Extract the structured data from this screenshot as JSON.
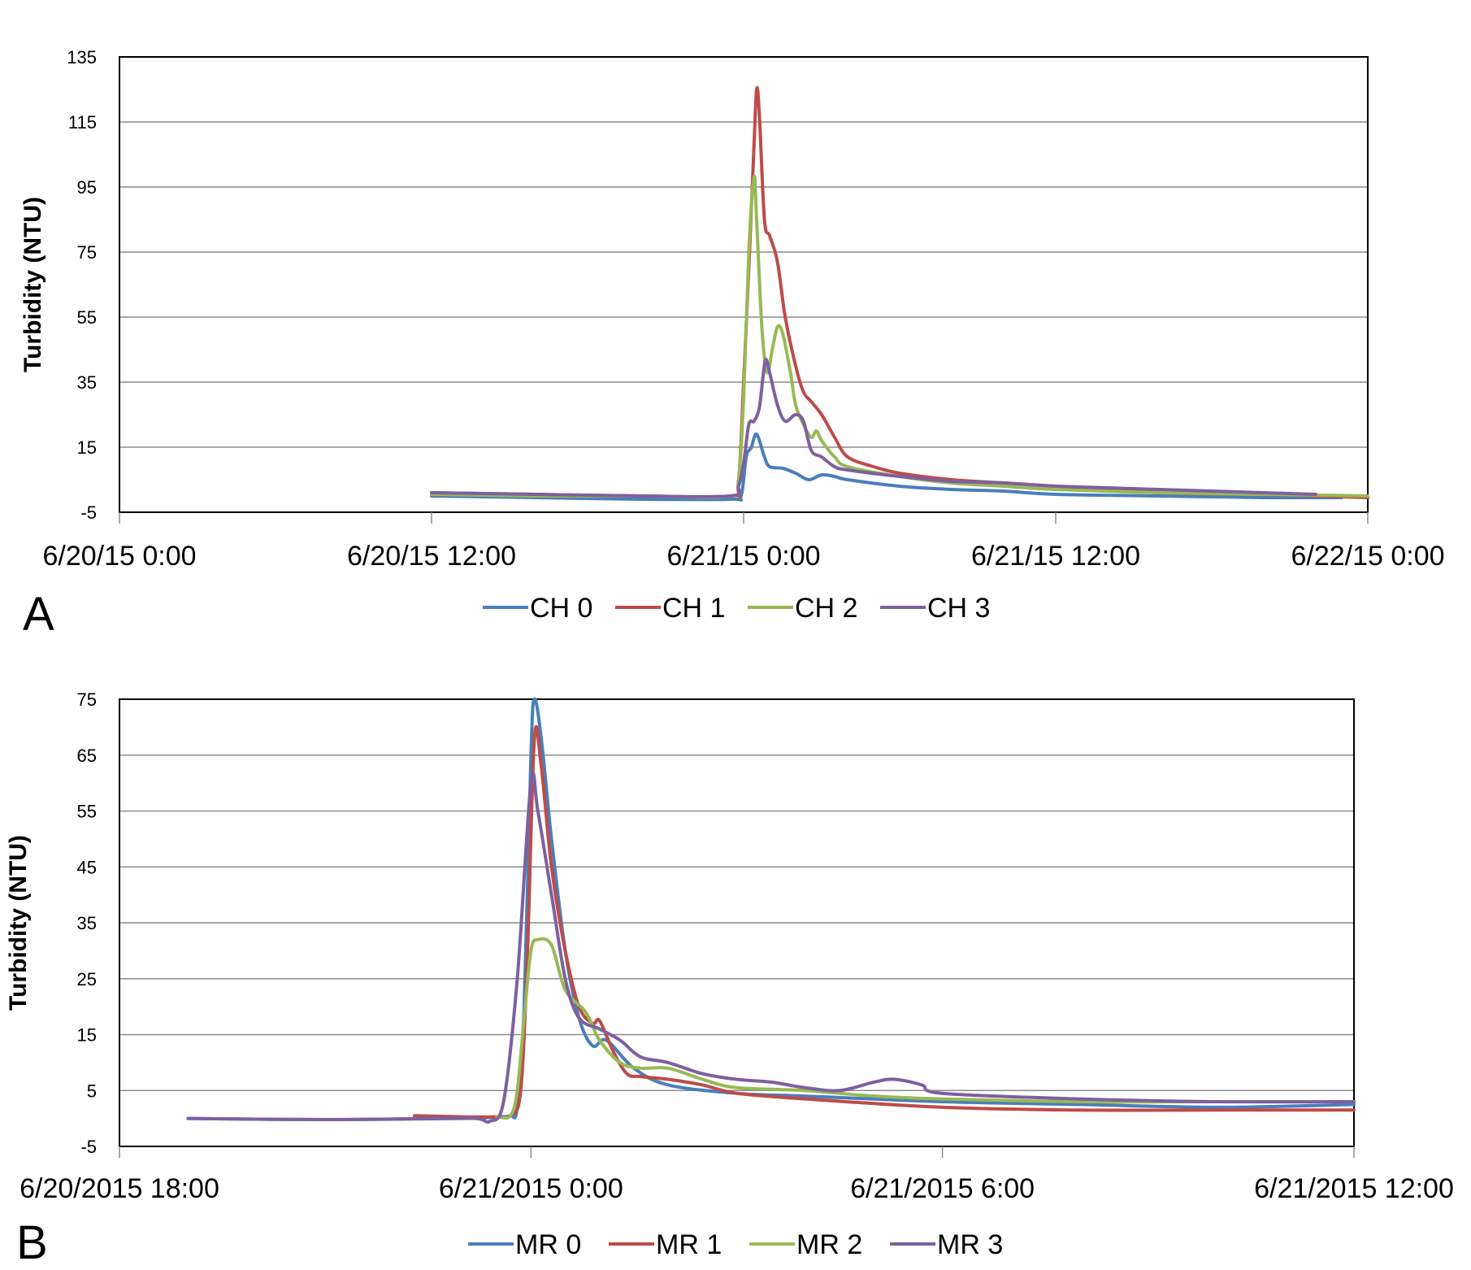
{
  "chart_data": [
    {
      "panel_label": "A",
      "type": "line",
      "ylabel": "Turbidity (NTU)",
      "ylim": [
        -5,
        135
      ],
      "yticks": [
        -5,
        15,
        35,
        55,
        75,
        95,
        115,
        135
      ],
      "x_unit": "hours since 6/20/15 0:00",
      "xlim": [
        0,
        48
      ],
      "xtick_labels": [
        "6/20/15 0:00",
        "6/20/15 12:00",
        "6/21/15 0:00",
        "6/21/15 12:00",
        "6/22/15 0:00"
      ],
      "grid": true,
      "legend_position": "bottom",
      "series": [
        {
          "name": "CH 0",
          "color": "#4a7ebb",
          "points": [
            [
              12,
              0
            ],
            [
              16,
              -0.5
            ],
            [
              20,
              -1
            ],
            [
              23.5,
              -1
            ],
            [
              23.9,
              0
            ],
            [
              24.1,
              12
            ],
            [
              24.3,
              15
            ],
            [
              24.5,
              19
            ],
            [
              24.8,
              12
            ],
            [
              25,
              9
            ],
            [
              25.5,
              8.5
            ],
            [
              26,
              7
            ],
            [
              26.5,
              5
            ],
            [
              27,
              6.5
            ],
            [
              27.5,
              6
            ],
            [
              28,
              5
            ],
            [
              30,
              3
            ],
            [
              32,
              2
            ],
            [
              34,
              1.5
            ],
            [
              36,
              0.5
            ],
            [
              40,
              0
            ],
            [
              44,
              -0.5
            ],
            [
              47,
              -0.5
            ]
          ]
        },
        {
          "name": "CH 1",
          "color": "#be4b48",
          "points": [
            [
              12,
              1
            ],
            [
              16,
              0.5
            ],
            [
              20,
              0
            ],
            [
              23.5,
              0
            ],
            [
              23.8,
              4
            ],
            [
              24,
              35
            ],
            [
              24.2,
              70
            ],
            [
              24.4,
              108
            ],
            [
              24.5,
              125
            ],
            [
              24.6,
              118
            ],
            [
              24.8,
              85
            ],
            [
              25,
              80
            ],
            [
              25.3,
              72
            ],
            [
              25.6,
              55
            ],
            [
              26,
              40
            ],
            [
              26.3,
              32
            ],
            [
              26.6,
              29
            ],
            [
              27,
              25
            ],
            [
              27.5,
              18
            ],
            [
              28,
              12
            ],
            [
              29,
              9
            ],
            [
              30,
              7
            ],
            [
              32,
              5
            ],
            [
              34,
              4
            ],
            [
              36,
              3
            ],
            [
              40,
              1
            ],
            [
              44,
              0.5
            ],
            [
              48,
              -0.5
            ]
          ]
        },
        {
          "name": "CH 2",
          "color": "#98b954",
          "points": [
            [
              12,
              0.5
            ],
            [
              16,
              0
            ],
            [
              20,
              0
            ],
            [
              23.5,
              0
            ],
            [
              23.8,
              5
            ],
            [
              24,
              30
            ],
            [
              24.2,
              75
            ],
            [
              24.4,
              98
            ],
            [
              24.5,
              85
            ],
            [
              24.7,
              52
            ],
            [
              24.9,
              38
            ],
            [
              25.1,
              45
            ],
            [
              25.3,
              52
            ],
            [
              25.5,
              50
            ],
            [
              25.8,
              38
            ],
            [
              26,
              28
            ],
            [
              26.3,
              22
            ],
            [
              26.6,
              18
            ],
            [
              26.8,
              20
            ],
            [
              27,
              17
            ],
            [
              27.5,
              12
            ],
            [
              28,
              9
            ],
            [
              30,
              6
            ],
            [
              32,
              4
            ],
            [
              34,
              3
            ],
            [
              36,
              2
            ],
            [
              40,
              1
            ],
            [
              44,
              0.5
            ],
            [
              48,
              0
            ]
          ]
        },
        {
          "name": "CH 3",
          "color": "#7d60a0",
          "points": [
            [
              12,
              1
            ],
            [
              16,
              0.5
            ],
            [
              20,
              0
            ],
            [
              23.5,
              0
            ],
            [
              23.8,
              3
            ],
            [
              24,
              10
            ],
            [
              24.2,
              22
            ],
            [
              24.4,
              23
            ],
            [
              24.6,
              27
            ],
            [
              24.75,
              37
            ],
            [
              24.85,
              42
            ],
            [
              25,
              38
            ],
            [
              25.3,
              28
            ],
            [
              25.6,
              23
            ],
            [
              26,
              25
            ],
            [
              26.3,
              23
            ],
            [
              26.6,
              14
            ],
            [
              27,
              12
            ],
            [
              27.5,
              9
            ],
            [
              28,
              8
            ],
            [
              30,
              6
            ],
            [
              32,
              4.5
            ],
            [
              34,
              4
            ],
            [
              36,
              3
            ],
            [
              40,
              2
            ],
            [
              44,
              1
            ],
            [
              46,
              0.5
            ]
          ]
        }
      ]
    },
    {
      "panel_label": "B",
      "type": "line",
      "ylabel": "Turbidity (NTU)",
      "ylim": [
        -5,
        75
      ],
      "yticks": [
        -5,
        5,
        15,
        25,
        35,
        45,
        55,
        65,
        75
      ],
      "x_unit": "hours since 6/20/2015 18:00",
      "xlim": [
        0,
        18
      ],
      "xtick_labels": [
        "6/20/2015 18:00",
        "6/21/2015 0:00",
        "6/21/2015 6:00",
        "6/21/2015 12:00"
      ],
      "grid": true,
      "legend_position": "bottom",
      "series": [
        {
          "name": "MR 0",
          "color": "#4a7ebb",
          "points": [
            [
              1,
              0
            ],
            [
              3,
              -0.2
            ],
            [
              5,
              0
            ],
            [
              5.5,
              0.3
            ],
            [
              5.7,
              0.5
            ],
            [
              5.8,
              2
            ],
            [
              5.9,
              20
            ],
            [
              6,
              65
            ],
            [
              6.05,
              75
            ],
            [
              6.15,
              68
            ],
            [
              6.3,
              50
            ],
            [
              6.5,
              30
            ],
            [
              6.7,
              18
            ],
            [
              6.9,
              13
            ],
            [
              7.1,
              14
            ],
            [
              7.5,
              9
            ],
            [
              8,
              6
            ],
            [
              9,
              4.5
            ],
            [
              10,
              4
            ],
            [
              12,
              3
            ],
            [
              14,
              2.5
            ],
            [
              16,
              2
            ],
            [
              18,
              2.5
            ]
          ]
        },
        {
          "name": "MR 1",
          "color": "#be4b48",
          "points": [
            [
              4.3,
              0.5
            ],
            [
              5,
              0.3
            ],
            [
              5.5,
              0.3
            ],
            [
              5.7,
              0.5
            ],
            [
              5.85,
              5
            ],
            [
              5.95,
              30
            ],
            [
              6.05,
              68
            ],
            [
              6.15,
              63
            ],
            [
              6.3,
              45
            ],
            [
              6.5,
              30
            ],
            [
              6.7,
              20
            ],
            [
              6.9,
              17
            ],
            [
              7,
              17.5
            ],
            [
              7.2,
              12
            ],
            [
              7.4,
              8
            ],
            [
              7.6,
              7.5
            ],
            [
              8,
              7
            ],
            [
              8.5,
              6
            ],
            [
              9,
              4.5
            ],
            [
              10,
              3.5
            ],
            [
              12,
              2
            ],
            [
              14,
              1.5
            ],
            [
              16,
              1.5
            ],
            [
              18,
              1.5
            ]
          ]
        },
        {
          "name": "MR 2",
          "color": "#98b954",
          "points": [
            [
              5.5,
              0.3
            ],
            [
              5.7,
              0.5
            ],
            [
              5.8,
              5
            ],
            [
              5.9,
              18
            ],
            [
              6,
              30
            ],
            [
              6.1,
              32
            ],
            [
              6.3,
              31
            ],
            [
              6.5,
              23
            ],
            [
              6.8,
              19
            ],
            [
              7,
              14
            ],
            [
              7.3,
              10
            ],
            [
              7.6,
              9
            ],
            [
              8,
              9
            ],
            [
              8.5,
              7
            ],
            [
              9,
              5.5
            ],
            [
              10,
              5
            ],
            [
              11,
              4
            ],
            [
              12,
              3.5
            ],
            [
              14,
              3
            ],
            [
              16,
              3
            ],
            [
              18,
              3
            ]
          ]
        },
        {
          "name": "MR 3",
          "color": "#7d60a0",
          "points": [
            [
              1,
              0
            ],
            [
              3,
              -0.2
            ],
            [
              4.5,
              0
            ],
            [
              5.2,
              0
            ],
            [
              5.4,
              -0.5
            ],
            [
              5.6,
              3
            ],
            [
              5.8,
              25
            ],
            [
              6,
              60
            ],
            [
              6.1,
              55
            ],
            [
              6.3,
              40
            ],
            [
              6.5,
              25
            ],
            [
              6.7,
              18
            ],
            [
              7,
              16
            ],
            [
              7.3,
              14
            ],
            [
              7.6,
              11
            ],
            [
              8,
              10
            ],
            [
              8.5,
              8
            ],
            [
              9,
              7
            ],
            [
              9.5,
              6.5
            ],
            [
              10,
              5.5
            ],
            [
              10.5,
              5
            ],
            [
              11,
              6.5
            ],
            [
              11.3,
              7
            ],
            [
              11.7,
              6
            ],
            [
              12,
              4.5
            ],
            [
              14,
              3.5
            ],
            [
              16,
              3
            ],
            [
              18,
              3
            ]
          ]
        }
      ]
    }
  ]
}
